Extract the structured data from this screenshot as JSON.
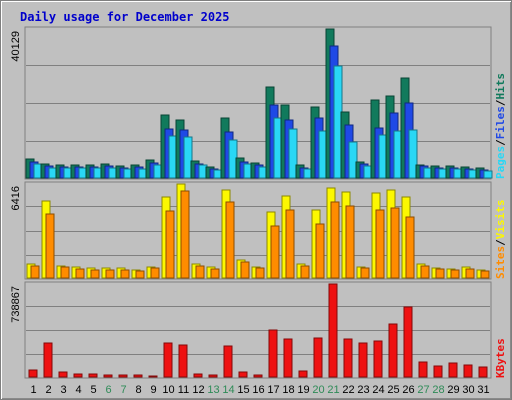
{
  "chart_data": {
    "type": "bar",
    "title": "Daily usage for December 2025",
    "categories": [
      "1",
      "2",
      "3",
      "4",
      "5",
      "6",
      "7",
      "8",
      "9",
      "10",
      "11",
      "12",
      "13",
      "14",
      "15",
      "16",
      "17",
      "18",
      "19",
      "20",
      "21",
      "22",
      "23",
      "24",
      "25",
      "26",
      "27",
      "28",
      "29",
      "30",
      "31"
    ],
    "weekend_days": [
      "6",
      "7",
      "13",
      "14",
      "20",
      "21",
      "27",
      "28"
    ],
    "panels": [
      {
        "id": "hits",
        "max_label": "40129",
        "ylim": [
          0,
          40129
        ],
        "series": [
          {
            "name": "Hits",
            "color": "#117a5c",
            "values": [
              5200,
              3800,
              3600,
              3500,
              3600,
              3700,
              3300,
              3500,
              4900,
              16900,
              15500,
              4600,
              2900,
              16200,
              5300,
              4100,
              24400,
              19600,
              3500,
              19100,
              40129,
              17800,
              4400,
              20900,
              22100,
              26800,
              3600,
              3100,
              3200,
              2900,
              2600
            ]
          },
          {
            "name": "Files",
            "color": "#1f49e6",
            "values": [
              4300,
              3200,
              3000,
              2900,
              3000,
              3100,
              2800,
              2900,
              4100,
              13300,
              12900,
              3900,
              2500,
              12300,
              4300,
              3400,
              19700,
              15700,
              2800,
              16200,
              35600,
              14300,
              3700,
              13400,
              17500,
              20100,
              3100,
              2600,
              2700,
              2400,
              2200
            ]
          },
          {
            "name": "Pages",
            "color": "#29d7f5",
            "values": [
              3700,
              2800,
              2700,
              2600,
              2700,
              2800,
              2400,
              2500,
              3600,
              11200,
              11100,
              3400,
              2200,
              10100,
              3800,
              3000,
              16200,
              13300,
              2400,
              12600,
              30200,
              9800,
              3100,
              11700,
              12600,
              12900,
              2700,
              2300,
              2300,
              2100,
              1900
            ]
          }
        ]
      },
      {
        "id": "visits",
        "max_label": "6416",
        "ylim": [
          0,
          6416
        ],
        "series": [
          {
            "name": "Visits",
            "color": "#fcf800",
            "values": [
              970,
              5280,
              830,
              720,
              660,
              660,
              660,
              550,
              780,
              5500,
              6416,
              940,
              730,
              6030,
              1210,
              740,
              4500,
              5600,
              940,
              4660,
              6110,
              5900,
              760,
              5780,
              5990,
              5540,
              940,
              680,
              640,
              730,
              570
            ]
          },
          {
            "name": "Sites",
            "color": "#ff8c00",
            "values": [
              850,
              4340,
              720,
              620,
              570,
              580,
              570,
              470,
              670,
              4570,
              5920,
              820,
              640,
              5200,
              1060,
              650,
              3520,
              4660,
              820,
              3700,
              5200,
              4940,
              660,
              4630,
              4790,
              4150,
              820,
              590,
              560,
              640,
              500
            ]
          }
        ]
      },
      {
        "id": "kbytes",
        "max_label": "738867",
        "ylim": [
          0,
          738867
        ],
        "series": [
          {
            "name": "KBytes",
            "color": "#ee1111",
            "values": [
              53000,
              269000,
              41000,
              21000,
              20000,
              15000,
              14000,
              12000,
              11000,
              267000,
              256000,
              23000,
              19000,
              248000,
              37000,
              19000,
              375000,
              305000,
              50000,
              313000,
              738867,
              305000,
              272000,
              287000,
              423000,
              554000,
              121000,
              87000,
              112000,
              99000,
              79000
            ]
          }
        ]
      }
    ],
    "legend": {
      "top": [
        "Pages",
        "Files",
        "Hits"
      ],
      "middle": [
        "Sites",
        "Visits"
      ],
      "bottom": [
        "KBytes"
      ],
      "separator": "/",
      "placement": "right, rotated"
    }
  }
}
